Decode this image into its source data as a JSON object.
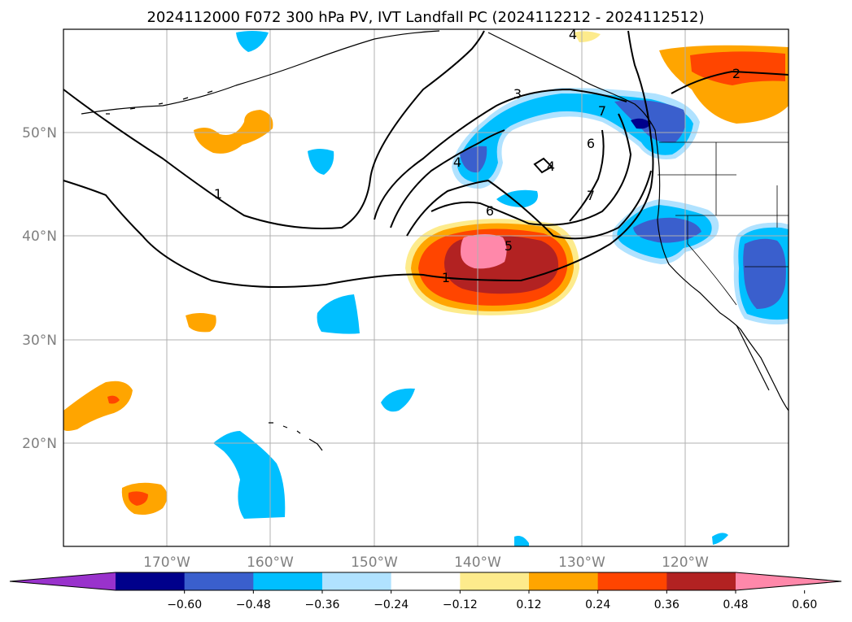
{
  "title": "2024112000 F072 300 hPa PV, IVT Landfall PC (2024112212 - 2024112512)",
  "map": {
    "lat_labels": [
      "50°N",
      "40°N",
      "30°N",
      "20°N"
    ],
    "lon_labels": [
      "170°W",
      "160°W",
      "150°W",
      "140°W",
      "130°W",
      "120°W"
    ],
    "lat_range": [
      10,
      60
    ],
    "lon_range": [
      -180,
      -110
    ]
  },
  "contour_labels": [
    "1",
    "1",
    "2",
    "3",
    "4",
    "5",
    "6",
    "6",
    "7",
    "4",
    "7",
    "4"
  ],
  "colorbar": {
    "ticks": [
      "−0.60",
      "−0.48",
      "−0.36",
      "−0.24",
      "−0.12",
      "0.12",
      "0.24",
      "0.36",
      "0.48",
      "0.60"
    ],
    "colors": [
      "#9932cc",
      "#00008b",
      "#3a5fcd",
      "#00bfff",
      "#b0e2ff",
      "#ffffff",
      "#fdeb8c",
      "#ffa500",
      "#ff4500",
      "#b22222",
      "#ff88aa"
    ]
  }
}
